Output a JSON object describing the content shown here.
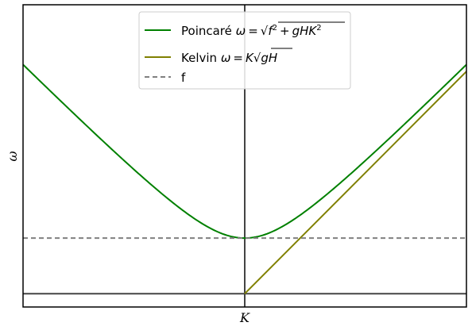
{
  "chart_data": {
    "type": "line",
    "title": "",
    "xlabel": "K",
    "ylabel": "ω",
    "xlim": [
      -2.0,
      2.0
    ],
    "ylim": [
      -0.12,
      2.6
    ],
    "grid": false,
    "legend_position": "top-center",
    "parameters": {
      "f": 0.5,
      "gH": 1.0
    },
    "reference_lines": {
      "vertical_x": 0,
      "horizontal_y": 0,
      "color": "#444444"
    },
    "series": [
      {
        "name": "Poincaré ω = √(f² + gHK²)",
        "kind": "poincare",
        "color": "#008000",
        "style": "solid",
        "sample_points": {
          "x": [
            -2.0,
            -1.5,
            -1.0,
            -0.5,
            0.0,
            0.5,
            1.0,
            1.5,
            2.0
          ],
          "y": [
            2.06,
            1.58,
            1.12,
            0.71,
            0.5,
            0.71,
            1.12,
            1.58,
            2.06
          ]
        }
      },
      {
        "name": "Kelvin ω = K√(gH)",
        "kind": "kelvin",
        "color": "#808000",
        "style": "solid",
        "sample_points": {
          "x": [
            0.0,
            0.5,
            1.0,
            1.5,
            2.0
          ],
          "y": [
            0.0,
            0.5,
            1.0,
            1.5,
            2.0
          ]
        }
      },
      {
        "name": "f",
        "kind": "constant",
        "color": "#808080",
        "style": "dashed",
        "sample_points": {
          "x": [
            -2.0,
            2.0
          ],
          "y": [
            0.5,
            0.5
          ]
        }
      }
    ],
    "legend": [
      {
        "series": 0,
        "prefix": "Poincaré ",
        "formula_parts": {
          "omega": "ω",
          "eq": "=",
          "sqrt": "√",
          "f": "f",
          "sup": "2",
          "plus": "+",
          "gHK": "gHK"
        }
      },
      {
        "series": 1,
        "prefix": "Kelvin ",
        "formula_parts": {
          "omega": "ω",
          "eq": "=",
          "K": "K",
          "sqrt": "√",
          "gH": "gH"
        }
      },
      {
        "series": 2,
        "label": "f"
      }
    ]
  }
}
